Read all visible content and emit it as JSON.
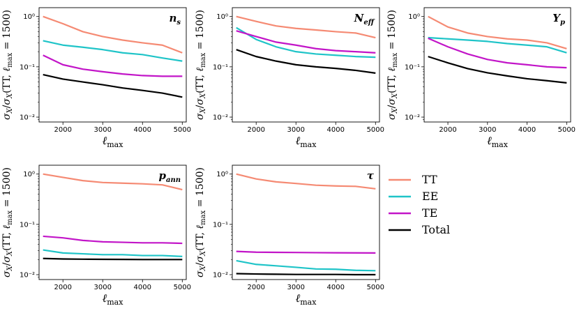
{
  "chart_data": {
    "type": "line",
    "ylabel": "σX/σX(TT, ℓmax = 1500)",
    "xlabel": "ℓmax",
    "xlim": [
      1400,
      5100
    ],
    "ylim": [
      0.008,
      1.5
    ],
    "yscale": "log",
    "xticks": [
      "2000",
      "3000",
      "4000",
      "5000"
    ],
    "yticks": [
      "10⁰",
      "10⁻¹",
      "10⁻²"
    ],
    "x": [
      1500,
      2000,
      2500,
      3000,
      3500,
      4000,
      4500,
      5000
    ],
    "series_meta": [
      {
        "name": "TT",
        "color": "#f58a73"
      },
      {
        "name": "EE",
        "color": "#1fc4c8"
      },
      {
        "name": "TE",
        "color": "#c215c8"
      },
      {
        "name": "Total",
        "color": "#000000"
      }
    ],
    "legend": {
      "placement": "right",
      "entries": [
        "TT",
        "EE",
        "TE",
        "Total"
      ]
    },
    "panels": [
      {
        "label": "ns",
        "series": [
          {
            "name": "TT",
            "values": [
              1.0,
              0.72,
              0.5,
              0.4,
              0.34,
              0.3,
              0.27,
              0.19
            ]
          },
          {
            "name": "EE",
            "values": [
              0.33,
              0.27,
              0.245,
              0.22,
              0.19,
              0.175,
              0.15,
              0.13
            ]
          },
          {
            "name": "TE",
            "values": [
              0.17,
              0.11,
              0.09,
              0.08,
              0.072,
              0.067,
              0.065,
              0.065
            ]
          },
          {
            "name": "Total",
            "values": [
              0.07,
              0.057,
              0.05,
              0.044,
              0.038,
              0.034,
              0.03,
              0.025
            ]
          }
        ]
      },
      {
        "label": "Neff",
        "series": [
          {
            "name": "TT",
            "values": [
              1.0,
              0.8,
              0.65,
              0.58,
              0.54,
              0.5,
              0.47,
              0.38
            ]
          },
          {
            "name": "EE",
            "values": [
              0.6,
              0.35,
              0.25,
              0.2,
              0.18,
              0.17,
              0.16,
              0.155
            ]
          },
          {
            "name": "TE",
            "values": [
              0.52,
              0.4,
              0.31,
              0.27,
              0.23,
              0.21,
              0.2,
              0.19
            ]
          },
          {
            "name": "Total",
            "values": [
              0.22,
              0.16,
              0.13,
              0.11,
              0.1,
              0.093,
              0.085,
              0.075
            ]
          }
        ]
      },
      {
        "label": "Yp",
        "series": [
          {
            "name": "TT",
            "values": [
              1.0,
              0.62,
              0.47,
              0.4,
              0.36,
              0.34,
              0.3,
              0.23
            ]
          },
          {
            "name": "EE",
            "values": [
              0.38,
              0.36,
              0.34,
              0.32,
              0.29,
              0.27,
              0.25,
              0.19
            ]
          },
          {
            "name": "TE",
            "values": [
              0.37,
              0.25,
              0.18,
              0.14,
              0.12,
              0.11,
              0.1,
              0.096
            ]
          },
          {
            "name": "Total",
            "values": [
              0.16,
              0.12,
              0.092,
              0.076,
              0.066,
              0.058,
              0.053,
              0.048
            ]
          }
        ]
      },
      {
        "label": "pann",
        "series": [
          {
            "name": "TT",
            "values": [
              1.0,
              0.86,
              0.74,
              0.68,
              0.66,
              0.64,
              0.61,
              0.49
            ]
          },
          {
            "name": "EE",
            "values": [
              0.031,
              0.027,
              0.026,
              0.025,
              0.025,
              0.024,
              0.024,
              0.023
            ]
          },
          {
            "name": "TE",
            "values": [
              0.058,
              0.054,
              0.048,
              0.045,
              0.044,
              0.043,
              0.043,
              0.042
            ]
          },
          {
            "name": "Total",
            "values": [
              0.021,
              0.0205,
              0.0203,
              0.0202,
              0.0201,
              0.02,
              0.02,
              0.02
            ]
          }
        ]
      },
      {
        "label": "τ",
        "series": [
          {
            "name": "TT",
            "values": [
              1.0,
              0.8,
              0.7,
              0.65,
              0.6,
              0.58,
              0.57,
              0.51
            ]
          },
          {
            "name": "EE",
            "values": [
              0.019,
              0.016,
              0.015,
              0.014,
              0.013,
              0.0128,
              0.0122,
              0.012
            ]
          },
          {
            "name": "TE",
            "values": [
              0.029,
              0.028,
              0.0278,
              0.0276,
              0.0274,
              0.0272,
              0.0271,
              0.027
            ]
          },
          {
            "name": "Total",
            "values": [
              0.0105,
              0.0103,
              0.0102,
              0.0101,
              0.0101,
              0.0101,
              0.01,
              0.01
            ]
          }
        ]
      }
    ]
  }
}
